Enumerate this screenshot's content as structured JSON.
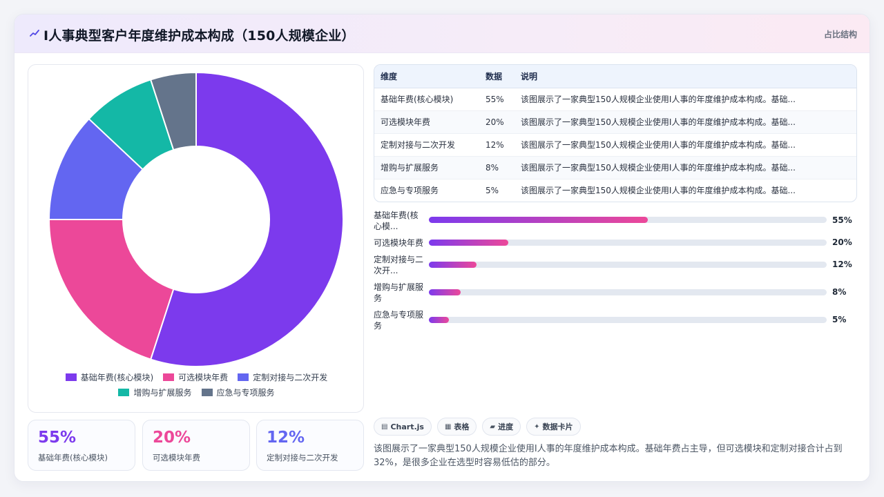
{
  "header": {
    "title": "I人事典型客户年度维护成本构成（150人规模企业）",
    "tag": "占比结构"
  },
  "colors": {
    "purple": "#7c3aed",
    "pink": "#ec4899",
    "indigo": "#6366f1",
    "teal": "#14b8a6",
    "slate": "#64748b"
  },
  "chart_data": {
    "type": "pie",
    "categories": [
      "基础年费(核心模块)",
      "可选模块年费",
      "定制对接与二次开发",
      "增购与扩展服务",
      "应急与专项服务"
    ],
    "values": [
      55,
      20,
      12,
      8,
      5
    ],
    "unit": "%",
    "colors": [
      "#7c3aed",
      "#ec4899",
      "#6366f1",
      "#14b8a6",
      "#64748b"
    ],
    "legend": "bottom"
  },
  "legend": [
    {
      "label": "基础年费(核心模块)",
      "color": "#7c3aed"
    },
    {
      "label": "可选模块年费",
      "color": "#ec4899"
    },
    {
      "label": "定制对接与二次开发",
      "color": "#6366f1"
    },
    {
      "label": "增购与扩展服务",
      "color": "#14b8a6"
    },
    {
      "label": "应急与专项服务",
      "color": "#64748b"
    }
  ],
  "stats": [
    {
      "value": "55%",
      "label": "基础年费(核心模块)",
      "color": "#7c3aed"
    },
    {
      "value": "20%",
      "label": "可选模块年费",
      "color": "#ec4899"
    },
    {
      "value": "12%",
      "label": "定制对接与二次开发",
      "color": "#6366f1"
    }
  ],
  "table": {
    "headers": [
      "维度",
      "数据",
      "说明"
    ],
    "rows": [
      [
        "基础年费(核心模块)",
        "55%",
        "该图展示了一家典型150人规模企业使用I人事的年度维护成本构成。基础..."
      ],
      [
        "可选模块年费",
        "20%",
        "该图展示了一家典型150人规模企业使用I人事的年度维护成本构成。基础..."
      ],
      [
        "定制对接与二次开发",
        "12%",
        "该图展示了一家典型150人规模企业使用I人事的年度维护成本构成。基础..."
      ],
      [
        "增购与扩展服务",
        "8%",
        "该图展示了一家典型150人规模企业使用I人事的年度维护成本构成。基础..."
      ],
      [
        "应急与专项服务",
        "5%",
        "该图展示了一家典型150人规模企业使用I人事的年度维护成本构成。基础..."
      ]
    ]
  },
  "progress": [
    {
      "label": "基础年费(核心模...",
      "value": 55,
      "text": "55%"
    },
    {
      "label": "可选模块年费",
      "value": 20,
      "text": "20%"
    },
    {
      "label": "定制对接与二次开...",
      "value": 12,
      "text": "12%"
    },
    {
      "label": "增购与扩展服务",
      "value": 8,
      "text": "8%"
    },
    {
      "label": "应急与专项服务",
      "value": 5,
      "text": "5%"
    }
  ],
  "chips": [
    {
      "icon": "▤",
      "label": "Chart.js"
    },
    {
      "icon": "▦",
      "label": "表格"
    },
    {
      "icon": "▰",
      "label": "进度"
    },
    {
      "icon": "✦",
      "label": "数据卡片"
    }
  ],
  "summary": "该图展示了一家典型150人规模企业使用I人事的年度维护成本构成。基础年费占主导，但可选模块和定制对接合计占到32%，是很多企业在选型时容易低估的部分。"
}
